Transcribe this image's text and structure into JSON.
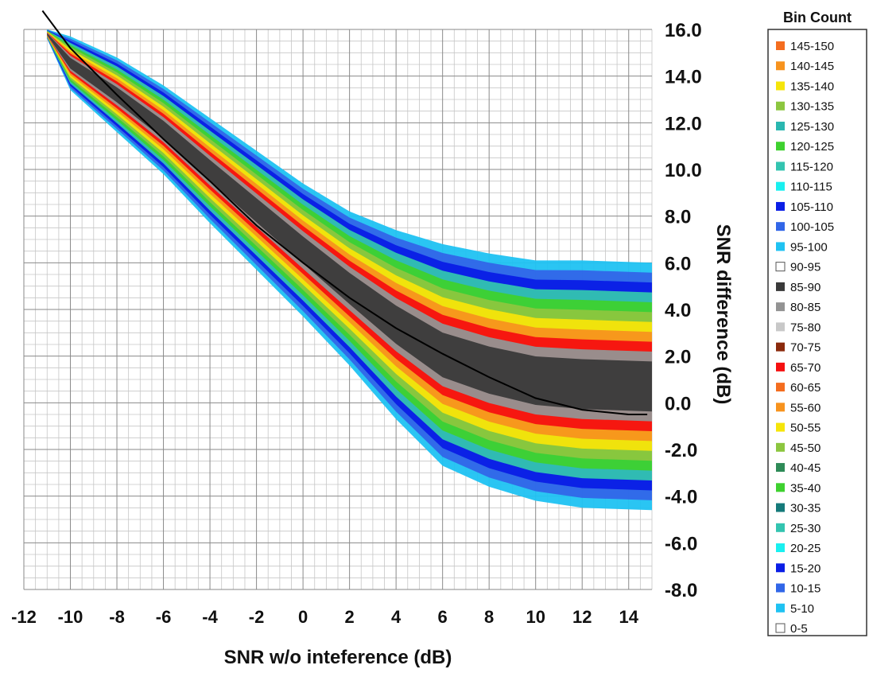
{
  "chart_data": {
    "type": "heatmap",
    "title": "",
    "xlabel": "SNR w/o inteference (dB)",
    "ylabel": "SNR difference (dB)",
    "xlim": [
      -12,
      15
    ],
    "ylim": [
      -8,
      16
    ],
    "x_ticks": [
      "-12",
      "-10",
      "-8",
      "-6",
      "-4",
      "-2",
      "0",
      "2",
      "4",
      "6",
      "8",
      "10",
      "12",
      "14"
    ],
    "y_ticks": [
      "16.0",
      "14.0",
      "12.0",
      "10.0",
      "8.0",
      "6.0",
      "4.0",
      "2.0",
      "0.0",
      "-2.0",
      "-4.0",
      "-6.0",
      "-8.0"
    ],
    "grid": true,
    "legend": {
      "title": "Bin Count",
      "placement": "right",
      "entries": [
        {
          "label": "145-150",
          "color": "#f46d1f"
        },
        {
          "label": "140-145",
          "color": "#f7931e"
        },
        {
          "label": "135-140",
          "color": "#f5e50a"
        },
        {
          "label": "130-135",
          "color": "#8cc63f"
        },
        {
          "label": "125-130",
          "color": "#2ab7b0"
        },
        {
          "label": "120-125",
          "color": "#3ed12f"
        },
        {
          "label": "115-120",
          "color": "#33c4b0"
        },
        {
          "label": "110-115",
          "color": "#19f0f0"
        },
        {
          "label": "105-110",
          "color": "#0a1ee6"
        },
        {
          "label": "100-105",
          "color": "#3166e8"
        },
        {
          "label": "95-100",
          "color": "#1fc2f2"
        },
        {
          "label": "90-95",
          "color": "#ffffff"
        },
        {
          "label": "85-90",
          "color": "#3a3a3a"
        },
        {
          "label": "80-85",
          "color": "#939393"
        },
        {
          "label": "75-80",
          "color": "#c8c8c8"
        },
        {
          "label": "70-75",
          "color": "#8b2a0c"
        },
        {
          "label": "65-70",
          "color": "#f51010"
        },
        {
          "label": "60-65",
          "color": "#f46d1f"
        },
        {
          "label": "55-60",
          "color": "#f7931e"
        },
        {
          "label": "50-55",
          "color": "#f5e50a"
        },
        {
          "label": "45-50",
          "color": "#8cc63f"
        },
        {
          "label": "40-45",
          "color": "#2e8b57"
        },
        {
          "label": "35-40",
          "color": "#3ed12f"
        },
        {
          "label": "30-35",
          "color": "#157a7a"
        },
        {
          "label": "25-30",
          "color": "#33c4b0"
        },
        {
          "label": "20-25",
          "color": "#19f0f0"
        },
        {
          "label": "15-20",
          "color": "#0a1ee6"
        },
        {
          "label": "10-15",
          "color": "#3166e8"
        },
        {
          "label": "5-10",
          "color": "#1fc2f2"
        },
        {
          "label": "0-5",
          "color": "#ffffff"
        }
      ]
    },
    "band_upper": {
      "x": [
        -11,
        -10,
        -8,
        -6,
        -4,
        -2,
        0,
        2,
        4,
        6,
        8,
        10,
        12,
        15
      ],
      "y": [
        16,
        15.7,
        14.8,
        13.6,
        12.2,
        10.8,
        9.4,
        8.2,
        7.4,
        6.8,
        6.4,
        6.1,
        6.1,
        6.0
      ]
    },
    "band_lower": {
      "x": [
        -11,
        -10,
        -8,
        -6,
        -4,
        -2,
        0,
        2,
        4,
        6,
        8,
        10,
        12,
        15
      ],
      "y": [
        15.6,
        13.4,
        11.6,
        9.8,
        7.7,
        5.7,
        3.7,
        1.6,
        -0.7,
        -2.7,
        -3.6,
        -4.2,
        -4.5,
        -4.6
      ]
    },
    "fit_curve": {
      "x": [
        -11.2,
        -10,
        -8,
        -6,
        -4,
        -2,
        0,
        2,
        4,
        6,
        8,
        10,
        12,
        14,
        14.8
      ],
      "y": [
        16.8,
        15.2,
        13.2,
        11.3,
        9.5,
        7.6,
        6.0,
        4.5,
        3.2,
        2.1,
        1.1,
        0.2,
        -0.3,
        -0.5,
        -0.5
      ]
    }
  }
}
